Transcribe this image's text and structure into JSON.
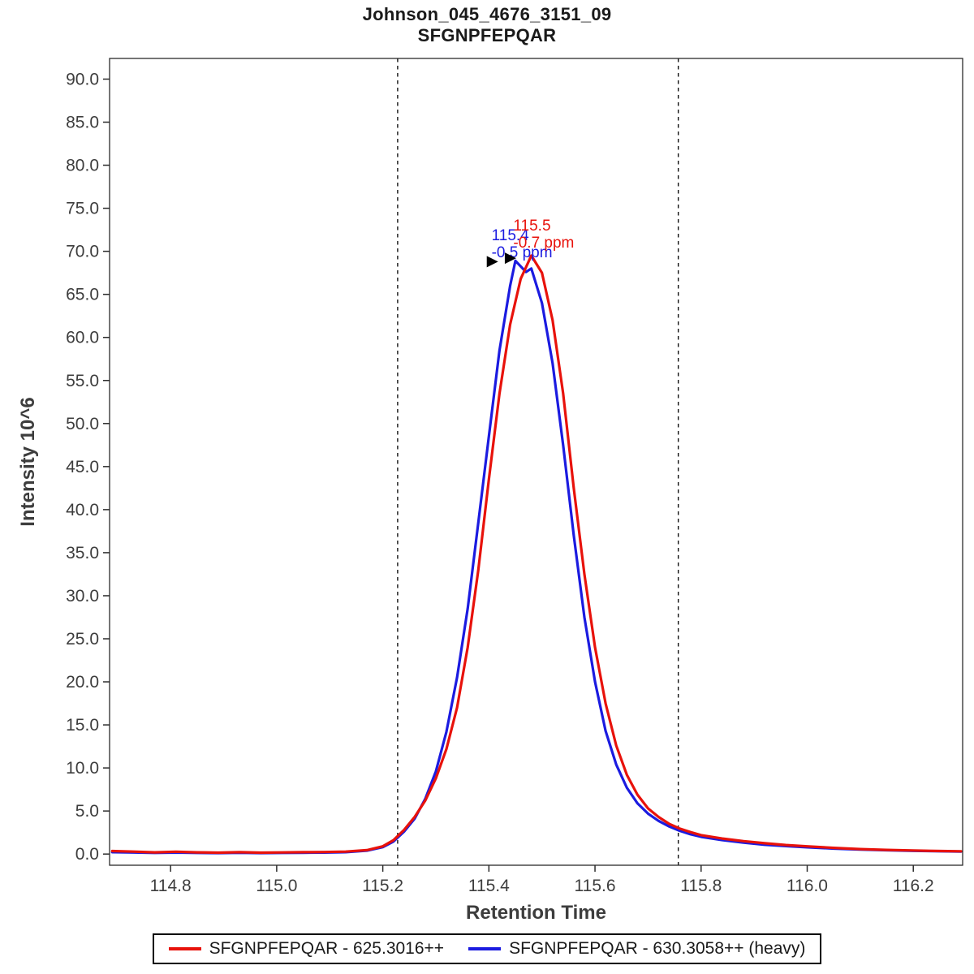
{
  "header": {
    "title": "Johnson_045_4676_3151_09",
    "subtitle": "SFGNPFEPQAR"
  },
  "chart_data": {
    "type": "line",
    "title": "Johnson_045_4676_3151_09",
    "subtitle": "SFGNPFEPQAR",
    "xlabel": "Retention Time",
    "ylabel": "Intensity 10^6",
    "xlim": [
      114.685,
      116.293
    ],
    "ylim": [
      -1.3,
      92.4
    ],
    "x_ticks": [
      114.8,
      115.0,
      115.2,
      115.4,
      115.6,
      115.8,
      116.0,
      116.2
    ],
    "y_ticks": [
      0,
      5,
      10,
      15,
      20,
      25,
      30,
      35,
      40,
      45,
      50,
      55,
      60,
      65,
      70,
      75,
      80,
      85,
      90
    ],
    "grid": false,
    "legend_position": "bottom",
    "axis_color": "#2b2b2b",
    "tick_label_color": "#3d3d3d",
    "integration_boundaries": [
      115.228,
      115.757
    ],
    "series": [
      {
        "key": "light",
        "name": "SFGNPFEPQAR - 625.3016++",
        "color": "#e8120b",
        "peak_rt_label": "115.5",
        "mass_error_label": "-0.7 ppm",
        "points": [
          [
            114.69,
            0.35
          ],
          [
            114.73,
            0.28
          ],
          [
            114.77,
            0.2
          ],
          [
            114.81,
            0.27
          ],
          [
            114.85,
            0.2
          ],
          [
            114.89,
            0.16
          ],
          [
            114.93,
            0.22
          ],
          [
            114.97,
            0.16
          ],
          [
            115.01,
            0.19
          ],
          [
            115.05,
            0.22
          ],
          [
            115.09,
            0.24
          ],
          [
            115.13,
            0.28
          ],
          [
            115.17,
            0.45
          ],
          [
            115.2,
            0.9
          ],
          [
            115.22,
            1.6
          ],
          [
            115.24,
            2.8
          ],
          [
            115.26,
            4.3
          ],
          [
            115.28,
            6.2
          ],
          [
            115.3,
            8.8
          ],
          [
            115.32,
            12.2
          ],
          [
            115.34,
            17.0
          ],
          [
            115.36,
            24.0
          ],
          [
            115.38,
            33.0
          ],
          [
            115.4,
            43.5
          ],
          [
            115.42,
            53.5
          ],
          [
            115.44,
            61.5
          ],
          [
            115.46,
            66.8
          ],
          [
            115.48,
            69.5
          ],
          [
            115.5,
            67.5
          ],
          [
            115.52,
            62.0
          ],
          [
            115.54,
            53.5
          ],
          [
            115.56,
            42.5
          ],
          [
            115.58,
            32.5
          ],
          [
            115.6,
            24.0
          ],
          [
            115.62,
            17.5
          ],
          [
            115.64,
            12.6
          ],
          [
            115.66,
            9.2
          ],
          [
            115.68,
            6.9
          ],
          [
            115.7,
            5.3
          ],
          [
            115.72,
            4.3
          ],
          [
            115.74,
            3.5
          ],
          [
            115.76,
            2.95
          ],
          [
            115.78,
            2.55
          ],
          [
            115.8,
            2.2
          ],
          [
            115.84,
            1.8
          ],
          [
            115.88,
            1.5
          ],
          [
            115.92,
            1.25
          ],
          [
            115.96,
            1.05
          ],
          [
            116.0,
            0.9
          ],
          [
            116.05,
            0.72
          ],
          [
            116.1,
            0.58
          ],
          [
            116.15,
            0.48
          ],
          [
            116.2,
            0.42
          ],
          [
            116.24,
            0.36
          ],
          [
            116.29,
            0.32
          ]
        ]
      },
      {
        "key": "heavy",
        "name": "SFGNPFEPQAR - 630.3058++ (heavy)",
        "color": "#1b1be0",
        "peak_rt_label": "115.4",
        "mass_error_label": "-0.5 ppm",
        "points": [
          [
            114.69,
            0.22
          ],
          [
            114.73,
            0.18
          ],
          [
            114.77,
            0.13
          ],
          [
            114.81,
            0.17
          ],
          [
            114.85,
            0.13
          ],
          [
            114.89,
            0.11
          ],
          [
            114.93,
            0.15
          ],
          [
            114.97,
            0.11
          ],
          [
            115.01,
            0.13
          ],
          [
            115.05,
            0.15
          ],
          [
            115.09,
            0.17
          ],
          [
            115.13,
            0.22
          ],
          [
            115.17,
            0.4
          ],
          [
            115.2,
            0.8
          ],
          [
            115.22,
            1.45
          ],
          [
            115.24,
            2.6
          ],
          [
            115.26,
            4.1
          ],
          [
            115.28,
            6.4
          ],
          [
            115.3,
            9.6
          ],
          [
            115.32,
            14.2
          ],
          [
            115.34,
            20.5
          ],
          [
            115.36,
            28.5
          ],
          [
            115.38,
            38.5
          ],
          [
            115.4,
            48.5
          ],
          [
            115.42,
            58.5
          ],
          [
            115.44,
            66.0
          ],
          [
            115.45,
            68.9
          ],
          [
            115.47,
            67.6
          ],
          [
            115.48,
            68.0
          ],
          [
            115.5,
            64.0
          ],
          [
            115.52,
            57.0
          ],
          [
            115.54,
            47.5
          ],
          [
            115.56,
            37.0
          ],
          [
            115.58,
            27.5
          ],
          [
            115.6,
            20.0
          ],
          [
            115.62,
            14.3
          ],
          [
            115.64,
            10.4
          ],
          [
            115.66,
            7.7
          ],
          [
            115.68,
            5.9
          ],
          [
            115.7,
            4.7
          ],
          [
            115.72,
            3.85
          ],
          [
            115.74,
            3.2
          ],
          [
            115.76,
            2.7
          ],
          [
            115.78,
            2.3
          ],
          [
            115.8,
            2.0
          ],
          [
            115.84,
            1.62
          ],
          [
            115.88,
            1.32
          ],
          [
            115.92,
            1.08
          ],
          [
            115.96,
            0.92
          ],
          [
            116.0,
            0.78
          ],
          [
            116.05,
            0.63
          ],
          [
            116.1,
            0.52
          ],
          [
            116.15,
            0.44
          ],
          [
            116.2,
            0.37
          ],
          [
            116.24,
            0.33
          ],
          [
            116.29,
            0.29
          ]
        ]
      }
    ],
    "annotations": [
      {
        "text_lines": [
          "115.4",
          "-0.5 ppm"
        ],
        "x": 115.405,
        "y": 71.3,
        "color": "#1b1be0"
      },
      {
        "text_lines": [
          "115.5",
          "-0.7 ppm"
        ],
        "x": 115.446,
        "y": 72.4,
        "color": "#e8120b"
      }
    ],
    "id_arrows": [
      {
        "x": 115.396,
        "y": 68.8
      },
      {
        "x": 115.43,
        "y": 69.2
      }
    ]
  },
  "legend": {
    "items": [
      {
        "label": "SFGNPFEPQAR - 625.3016++",
        "color": "#e8120b"
      },
      {
        "label": "SFGNPFEPQAR - 630.3058++ (heavy)",
        "color": "#1b1be0"
      }
    ]
  }
}
